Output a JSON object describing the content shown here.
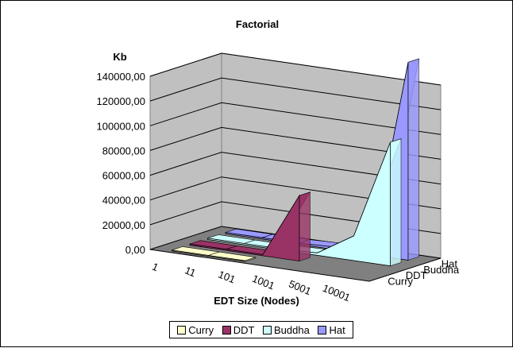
{
  "chart_data": {
    "type": "area",
    "style": "3d",
    "title": "Factorial",
    "ylabel": "Kb",
    "xlabel": "EDT Size (Nodes)",
    "categories": [
      "1",
      "11",
      "101",
      "1001",
      "5001",
      "10001"
    ],
    "ylim": [
      0,
      140000
    ],
    "yticks": [
      "0,00",
      "20000,00",
      "40000,00",
      "60000,00",
      "80000,00",
      "100000,00",
      "120000,00",
      "140000,00"
    ],
    "series": [
      {
        "name": "Curry",
        "color": "#ffffcc",
        "values": [
          700,
          700,
          700,
          null,
          null,
          null
        ]
      },
      {
        "name": "DDT",
        "color": "#993366",
        "values": [
          1000,
          1000,
          1000,
          53000,
          null,
          null
        ]
      },
      {
        "name": "Buddha",
        "color": "#ccffff",
        "values": [
          1000,
          1000,
          1000,
          2000,
          20000,
          100000
        ]
      },
      {
        "name": "Hat",
        "color": "#9999ff",
        "values": [
          1000,
          1000,
          1000,
          2000,
          5000,
          160000
        ]
      }
    ],
    "grid": true,
    "legend_position": "bottom"
  }
}
